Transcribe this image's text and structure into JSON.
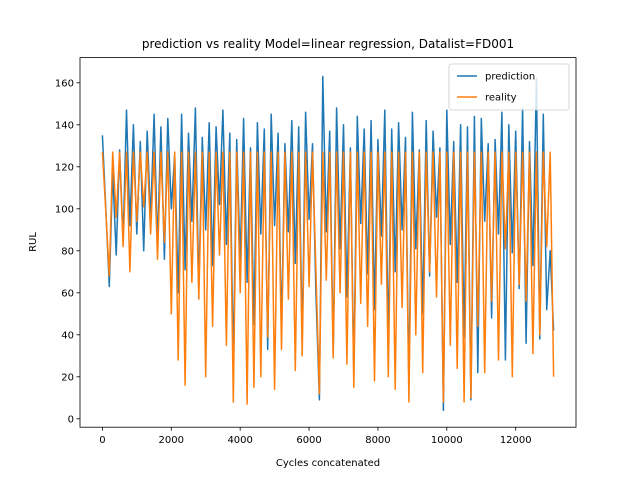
{
  "chart_data": {
    "type": "line",
    "title": "prediction vs reality Model=linear regression, Datalist=FD001",
    "xlabel": "Cycles concatenated",
    "ylabel": "RUL",
    "xlim": [
      -650,
      13750
    ],
    "ylim": [
      -4,
      172
    ],
    "xticks": [
      0,
      2000,
      4000,
      6000,
      8000,
      10000,
      12000
    ],
    "yticks": [
      0,
      20,
      40,
      60,
      80,
      100,
      120,
      140,
      160
    ],
    "grid": false,
    "legend_position": "top-right",
    "series": [
      {
        "name": "prediction",
        "color": "#1f77b4",
        "x": [
          0,
          100,
          200,
          300,
          400,
          500,
          600,
          700,
          800,
          900,
          1000,
          1100,
          1200,
          1300,
          1400,
          1500,
          1600,
          1700,
          1800,
          1900,
          2000,
          2100,
          2200,
          2300,
          2400,
          2500,
          2600,
          2700,
          2800,
          2900,
          3000,
          3100,
          3200,
          3300,
          3400,
          3500,
          3600,
          3700,
          3800,
          3900,
          4000,
          4100,
          4200,
          4300,
          4400,
          4500,
          4600,
          4700,
          4800,
          4900,
          5000,
          5100,
          5200,
          5300,
          5400,
          5500,
          5600,
          5700,
          5800,
          5900,
          6000,
          6100,
          6200,
          6300,
          6400,
          6500,
          6600,
          6700,
          6800,
          6900,
          7000,
          7100,
          7200,
          7300,
          7400,
          7500,
          7600,
          7700,
          7800,
          7900,
          8000,
          8100,
          8200,
          8300,
          8400,
          8500,
          8600,
          8700,
          8800,
          8900,
          9000,
          9100,
          9200,
          9300,
          9400,
          9500,
          9600,
          9700,
          9800,
          9900,
          10000,
          10100,
          10200,
          10300,
          10400,
          10500,
          10600,
          10700,
          10800,
          10900,
          11000,
          11100,
          11200,
          11300,
          11400,
          11500,
          11600,
          11700,
          11800,
          11900,
          12000,
          12100,
          12200,
          12300,
          12400,
          12500,
          12600,
          12700,
          12800,
          12900,
          13000,
          13100
        ],
        "y": [
          135,
          100,
          63,
          118,
          78,
          128,
          85,
          147,
          92,
          140,
          88,
          132,
          80,
          137,
          95,
          145,
          82,
          139,
          76,
          143,
          100,
          126,
          60,
          145,
          71,
          136,
          94,
          148,
          62,
          134,
          90,
          141,
          73,
          139,
          102,
          147,
          83,
          136,
          25,
          133,
          75,
          143,
          65,
          129,
          45,
          141,
          88,
          138,
          33,
          145,
          92,
          136,
          41,
          131,
          89,
          142,
          74,
          139,
          37,
          146,
          95,
          131,
          60,
          9,
          163,
          89,
          137,
          31,
          148,
          81,
          140,
          58,
          129,
          21,
          144,
          93,
          138,
          69,
          142,
          52,
          133,
          87,
          147,
          37,
          138,
          70,
          141,
          90,
          134,
          16,
          146,
          81,
          128,
          50,
          142,
          68,
          137,
          96,
          129,
          4,
          147,
          83,
          132,
          65,
          140,
          39,
          139,
          9,
          144,
          22,
          143,
          94,
          131,
          48,
          133,
          88,
          146,
          28,
          140,
          79,
          137,
          62,
          148,
          36,
          132,
          73,
          162,
          38,
          145,
          52,
          80,
          42
        ]
      },
      {
        "name": "reality",
        "color": "#ff7f0e",
        "x": [
          0,
          100,
          200,
          300,
          400,
          500,
          600,
          700,
          800,
          900,
          1000,
          1100,
          1200,
          1300,
          1400,
          1500,
          1600,
          1700,
          1800,
          1900,
          2000,
          2100,
          2200,
          2300,
          2400,
          2500,
          2600,
          2700,
          2800,
          2900,
          3000,
          3100,
          3200,
          3300,
          3400,
          3500,
          3600,
          3700,
          3800,
          3900,
          4000,
          4100,
          4200,
          4300,
          4400,
          4500,
          4600,
          4700,
          4800,
          4900,
          5000,
          5100,
          5200,
          5300,
          5400,
          5500,
          5600,
          5700,
          5800,
          5900,
          6000,
          6100,
          6200,
          6300,
          6400,
          6500,
          6600,
          6700,
          6800,
          6900,
          7000,
          7100,
          7200,
          7300,
          7400,
          7500,
          7600,
          7700,
          7800,
          7900,
          8000,
          8100,
          8200,
          8300,
          8400,
          8500,
          8600,
          8700,
          8800,
          8900,
          9000,
          9100,
          9200,
          9300,
          9400,
          9500,
          9600,
          9700,
          9800,
          9900,
          10000,
          10100,
          10200,
          10300,
          10400,
          10500,
          10600,
          10700,
          10800,
          10900,
          11000,
          11100,
          11200,
          11300,
          11400,
          11500,
          11600,
          11700,
          11800,
          11900,
          12000,
          12100,
          12200,
          12300,
          12400,
          12500,
          12600,
          12700,
          12800,
          12900,
          13000,
          13100
        ],
        "y": [
          127,
          99,
          68,
          127,
          96,
          127,
          82,
          127,
          70,
          127,
          94,
          127,
          101,
          127,
          88,
          127,
          76,
          127,
          84,
          127,
          50,
          127,
          28,
          127,
          16,
          127,
          65,
          127,
          57,
          127,
          20,
          127,
          44,
          127,
          78,
          127,
          35,
          127,
          8,
          127,
          60,
          127,
          7,
          127,
          15,
          127,
          20,
          127,
          39,
          127,
          14,
          127,
          33,
          127,
          57,
          127,
          23,
          127,
          30,
          127,
          63,
          127,
          71,
          12,
          127,
          66,
          127,
          29,
          127,
          60,
          127,
          26,
          127,
          15,
          127,
          55,
          127,
          44,
          127,
          18,
          127,
          64,
          127,
          20,
          127,
          14,
          127,
          53,
          127,
          8,
          127,
          40,
          127,
          22,
          127,
          70,
          127,
          58,
          127,
          8,
          127,
          35,
          127,
          24,
          127,
          8,
          127,
          10,
          127,
          44,
          127,
          22,
          127,
          56,
          127,
          28,
          127,
          81,
          127,
          20,
          127,
          64,
          127,
          56,
          127,
          31,
          127,
          40,
          127,
          82,
          127,
          20
        ]
      }
    ]
  }
}
